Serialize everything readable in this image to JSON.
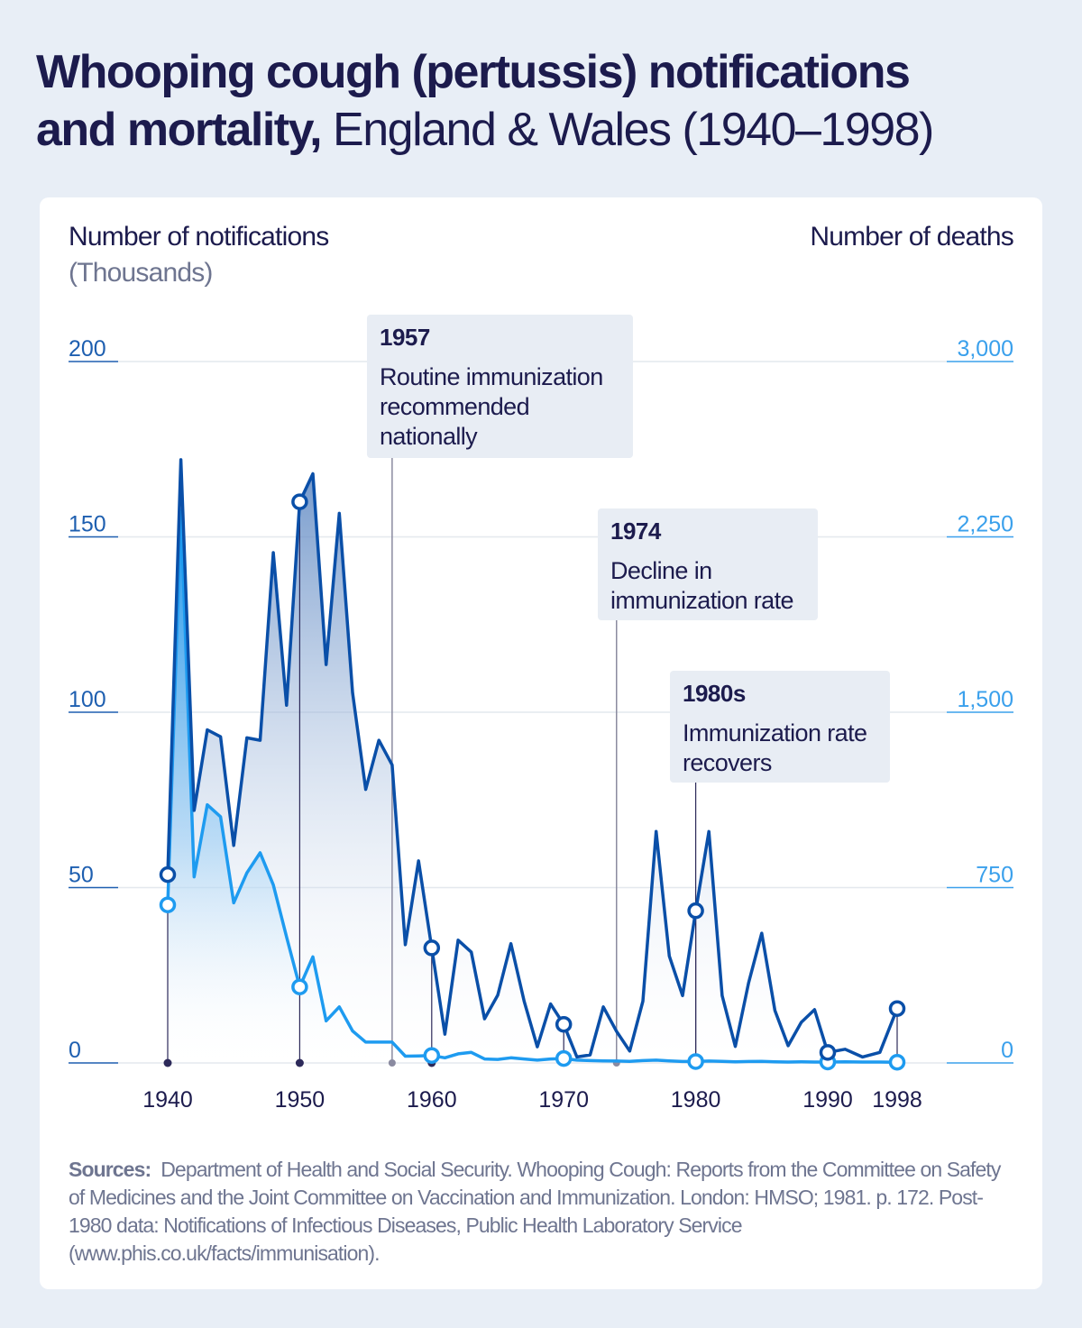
{
  "title": {
    "bold": "Whooping cough (pertussis) notifications",
    "bold2": "and mortality,",
    "light": "England & Wales (1940–1998)"
  },
  "axes": {
    "left_title": "Number of notifications",
    "left_subtitle": "(Thousands)",
    "right_title": "Number of deaths"
  },
  "annotations": [
    {
      "year": "1957",
      "text": "Routine immunization recommended nationally"
    },
    {
      "year": "1974",
      "text": "Decline in immunization rate"
    },
    {
      "year": "1980s",
      "text": "Immunization rate recovers"
    }
  ],
  "sources": {
    "label": "Sources:",
    "text": "Department of Health and Social Security. Whooping Cough: Reports from the Committee on Safety of Medicines and the Joint Committee on Vaccination and Immunization. London: HMSO; 1981. p. 172. Post-1980 data: Notifications of Infectious Diseases, Public Health Laboratory Service (www.phis.co.uk/facts/immunisation)."
  },
  "colors": {
    "notifications": "#0a4fa8",
    "deaths": "#1e9bf0",
    "text": "#1c1b4d",
    "left_axis": "#1e5fb0",
    "right_axis": "#3aa0ec",
    "background": "#e8eef6"
  },
  "chart_data": {
    "type": "line",
    "x_ticks": [
      "1940",
      "1950",
      "1960",
      "1970",
      "1980",
      "1990",
      "1998"
    ],
    "left_ticks": [
      "0",
      "50",
      "100",
      "150",
      "200"
    ],
    "right_ticks": [
      "0",
      "750",
      "1,500",
      "2,250",
      "3,000"
    ],
    "ylim_left": [
      0,
      200
    ],
    "ylim_right": [
      0,
      3000
    ],
    "grid": true,
    "x": [
      1940,
      1941,
      1942,
      1943,
      1944,
      1945,
      1946,
      1947,
      1948,
      1949,
      1950,
      1951,
      1952,
      1953,
      1954,
      1955,
      1956,
      1957,
      1958,
      1959,
      1960,
      1961,
      1962,
      1963,
      1964,
      1965,
      1966,
      1967,
      1968,
      1969,
      1970,
      1971,
      1972,
      1973,
      1974,
      1975,
      1976,
      1977,
      1978,
      1979,
      1980,
      1981,
      1982,
      1983,
      1984,
      1985,
      1986,
      1987,
      1988,
      1989,
      1990,
      1992,
      1994,
      1996,
      1998
    ],
    "series": [
      {
        "axis": "left",
        "values": [
          53.7,
          172,
          72,
          95,
          93,
          62,
          92.7,
          92,
          145.5,
          102,
          160,
          168,
          113.6,
          156.7,
          105.6,
          78,
          92,
          85,
          33.7,
          57.6,
          32.8,
          8.2,
          35,
          31.6,
          12.6,
          19.3,
          34,
          17.6,
          4.6,
          16.8,
          11,
          1.7,
          2.3,
          16,
          9,
          3.4,
          17.6,
          66,
          30.5,
          19.2,
          43.4,
          66,
          19.2,
          4.7,
          22.8,
          37,
          15,
          4.9,
          11.6,
          15.2,
          3,
          3.9,
          1.7,
          3,
          15.5
        ]
      },
      {
        "axis": "right",
        "values": [
          676,
          2363,
          796,
          1104,
          1053,
          685,
          813,
          899,
          762,
          539,
          325,
          454,
          180,
          240,
          137,
          89,
          89,
          89,
          29,
          30,
          32,
          22,
          39,
          45,
          17,
          15,
          22,
          17,
          12,
          17,
          19,
          12,
          10,
          9,
          8,
          7,
          10,
          12,
          9,
          6,
          6,
          8,
          7,
          5,
          6,
          7,
          5,
          4,
          5,
          4,
          4,
          5,
          4,
          4,
          3
        ]
      }
    ],
    "marker_years": [
      1940,
      1950,
      1960,
      1970,
      1980,
      1990,
      1998
    ],
    "event_years": [
      1957,
      1974
    ]
  }
}
